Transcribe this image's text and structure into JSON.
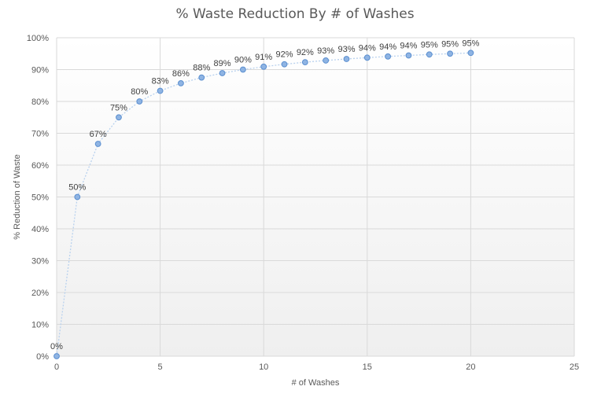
{
  "chart_data": {
    "type": "scatter",
    "title": "% Waste Reduction By # of Washes",
    "xlabel": "# of Washes",
    "ylabel": "% Reduction of Waste",
    "xlim": [
      0,
      25
    ],
    "ylim": [
      0,
      100
    ],
    "x_ticks": [
      0,
      5,
      10,
      15,
      20,
      25
    ],
    "y_ticks": [
      0,
      10,
      20,
      30,
      40,
      50,
      60,
      70,
      80,
      90,
      100
    ],
    "y_tick_format": "percent",
    "grid": true,
    "legend": "none",
    "colors": {
      "marker_fill": "#8fb4e3",
      "marker_stroke": "#5b8fd0",
      "line": "#b8d1ee",
      "grid": "#d9d9d9",
      "background_bottom": "#efefef"
    },
    "x": [
      0,
      1,
      2,
      3,
      4,
      5,
      6,
      7,
      8,
      9,
      10,
      11,
      12,
      13,
      14,
      15,
      16,
      17,
      18,
      19,
      20
    ],
    "y": [
      0,
      50,
      66.67,
      75,
      80,
      83.33,
      85.71,
      87.5,
      88.89,
      90,
      90.91,
      91.67,
      92.31,
      92.86,
      93.33,
      93.75,
      94.12,
      94.44,
      94.74,
      95,
      95.24
    ],
    "data_labels": [
      "0%",
      "50%",
      "67%",
      "75%",
      "80%",
      "83%",
      "86%",
      "88%",
      "89%",
      "90%",
      "91%",
      "92%",
      "92%",
      "93%",
      "93%",
      "94%",
      "94%",
      "94%",
      "95%",
      "95%",
      "95%"
    ]
  }
}
